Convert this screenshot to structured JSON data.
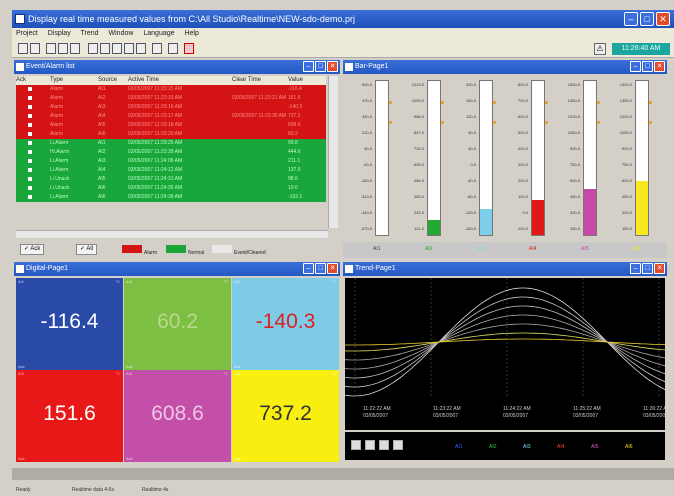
{
  "window": {
    "title": "Display real time measured values from C:\\All Studio\\Realtime\\NEW-sdo-demo.prj"
  },
  "menu": [
    "Project",
    "Display",
    "Trend",
    "Window",
    "Language",
    "Help"
  ],
  "toolbar": {
    "clock": "11:26:40 AM"
  },
  "event_panel": {
    "title": "Event/Alarm list",
    "columns": [
      "Ack",
      "Type",
      "Source",
      "Active Time",
      "Clear Time",
      "Value"
    ],
    "rows": [
      {
        "type": "Alarm",
        "source": "AI1",
        "active": "03/05/2007 11:23:15 AM",
        "clear": "",
        "value": "-116.4",
        "state": "alarm"
      },
      {
        "type": "Alarm",
        "source": "AI2",
        "active": "03/05/2007 11:23:15 AM",
        "clear": "03/05/2007 11:23:21 AM",
        "value": "151.6",
        "state": "alarm"
      },
      {
        "type": "Alarm",
        "source": "AI3",
        "active": "03/05/2007 11:23:16 AM",
        "clear": "",
        "value": "-140.3",
        "state": "alarm"
      },
      {
        "type": "Alarm",
        "source": "AI4",
        "active": "03/05/2007 11:23:17 AM",
        "clear": "03/05/2007 11:23:30 AM",
        "value": "737.2",
        "state": "alarm"
      },
      {
        "type": "Alarm",
        "source": "AI5",
        "active": "03/05/2007 11:23:18 AM",
        "clear": "",
        "value": "608.6",
        "state": "alarm"
      },
      {
        "type": "Alarm",
        "source": "AI6",
        "active": "03/05/2007 11:23:20 AM",
        "clear": "",
        "value": "60.2",
        "state": "alarm"
      },
      {
        "type": "Li.Alarm",
        "source": "AI1",
        "active": "03/05/2007 11:23:25 AM",
        "clear": "",
        "value": "99.8",
        "state": "normal"
      },
      {
        "type": "Hi.Alarm",
        "source": "AI2",
        "active": "03/05/2007 11:23:28 AM",
        "clear": "",
        "value": "444.6",
        "state": "normal"
      },
      {
        "type": "Li.Alarm",
        "source": "AI3",
        "active": "03/05/2007 11:24:06 AM",
        "clear": "",
        "value": "211.1",
        "state": "normal"
      },
      {
        "type": "Li.Alarm",
        "source": "AI4",
        "active": "03/05/2007 11:24:12 AM",
        "clear": "",
        "value": "137.6",
        "state": "normal"
      },
      {
        "type": "Li.Unack",
        "source": "AI5",
        "active": "03/05/2007 11:24:31 AM",
        "clear": "",
        "value": "98.6",
        "state": "normal"
      },
      {
        "type": "Li.Unack",
        "source": "AI6",
        "active": "03/05/2007 11:24:35 AM",
        "clear": "",
        "value": "19.0",
        "state": "normal"
      },
      {
        "type": "Li.Alarm",
        "source": "AI6",
        "active": "03/05/2007 11:24:38 AM",
        "clear": "",
        "value": "-102.1",
        "state": "normal"
      }
    ],
    "footer": {
      "ack_label": "Ack",
      "all_label": "All",
      "alarm_label": "Alarm",
      "normal_label": "Normal",
      "event_label": "Event/Cleared"
    },
    "colors": {
      "alarm": "#d41414",
      "normal": "#19a63a"
    }
  },
  "bar_panel": {
    "title": "Bar-Page1",
    "bars": [
      {
        "tag": "AI1",
        "fill": 0.0,
        "color": "#ffffff",
        "scale": [
          "600.0",
          "470.0",
          "340.0",
          "210.0",
          "80.0",
          "-50.0",
          "-180.0",
          "-310.0",
          "-440.0",
          "-570.0"
        ]
      },
      {
        "tag": "AI2",
        "fill": 0.1,
        "color": "#22aa33",
        "scale": [
          "1210.0",
          "1090.0",
          "968.0",
          "847.0",
          "726.0",
          "605.0",
          "484.0",
          "363.0",
          "242.0",
          "121.0"
        ]
      },
      {
        "tag": "AI3",
        "fill": 0.17,
        "color": "#7dd0ec",
        "scale": [
          "200.0",
          "160.0",
          "120.0",
          "80.0",
          "40.0",
          "0.0",
          "-40.0",
          "-80.0",
          "-120.0",
          "-160.0"
        ]
      },
      {
        "tag": "AI4",
        "fill": 0.23,
        "color": "#e01818",
        "scale": [
          "800.0",
          "700.0",
          "600.0",
          "500.0",
          "400.0",
          "300.0",
          "200.0",
          "100.0",
          "0.0",
          "-100.0"
        ]
      },
      {
        "tag": "AI5",
        "fill": 0.3,
        "color": "#c848a8",
        "scale": [
          "1500.0",
          "1350.0",
          "1200.0",
          "1050.0",
          "900.0",
          "750.0",
          "600.0",
          "450.0",
          "300.0",
          "150.0"
        ]
      },
      {
        "tag": "AI6",
        "fill": 0.35,
        "color": "#f8e820",
        "scale": [
          "1500.0",
          "1350.0",
          "1200.0",
          "1050.0",
          "900.0",
          "750.0",
          "600.0",
          "450.0",
          "300.0",
          "150.0"
        ]
      }
    ]
  },
  "digital_panel": {
    "title": "Digital-Page1",
    "cells": [
      {
        "tag": "AI1",
        "unit": "°C",
        "value": "-116.4",
        "bg": "#2a4aa8",
        "fg": "#ffffff",
        "foot": "Ack"
      },
      {
        "tag": "AI2",
        "unit": "°C",
        "value": "151.6",
        "bg": "#e81818",
        "fg": "#ffffff",
        "foot": "Ack"
      },
      {
        "tag": "AI3",
        "unit": "°C",
        "value": "60.2",
        "bg": "#7dbf42",
        "fg": "#b9d88c",
        "foot": "Ack"
      },
      {
        "tag": "AI4",
        "unit": "°C",
        "value": "608.6",
        "bg": "#c44fa8",
        "fg": "#f0c4e8",
        "foot": "Ack"
      },
      {
        "tag": "AI5",
        "unit": "°C",
        "value": "-140.3",
        "bg": "#7dcbe6",
        "fg": "#e02020",
        "foot": "Ack"
      },
      {
        "tag": "AI6",
        "unit": "°C",
        "value": "737.2",
        "bg": "#f8ef10",
        "fg": "#303030",
        "foot": "Ack"
      }
    ]
  },
  "trend_panel": {
    "title": "Trend-Page1",
    "time_labels": [
      {
        "time": "11:22:22 AM",
        "date": "03/05/2007"
      },
      {
        "time": "11:23:22 AM",
        "date": "03/05/2007"
      },
      {
        "time": "11:24:22 AM",
        "date": "03/05/2007"
      },
      {
        "time": "11:25:22 AM",
        "date": "03/05/2007"
      },
      {
        "time": "11:26:22 AM",
        "date": "03/05/2007"
      }
    ],
    "legend": [
      {
        "tag": "AI1",
        "color": "#3060ff"
      },
      {
        "tag": "AI2",
        "color": "#30d040"
      },
      {
        "tag": "AI3",
        "color": "#80e0f0"
      },
      {
        "tag": "AI4",
        "color": "#ff4040"
      },
      {
        "tag": "AI5",
        "color": "#e060c0"
      },
      {
        "tag": "AI6",
        "color": "#f0e020"
      }
    ]
  },
  "status": {
    "left": "Ready",
    "mid1": "Realtime data 4-5s",
    "mid2": "Realtime 4s"
  }
}
